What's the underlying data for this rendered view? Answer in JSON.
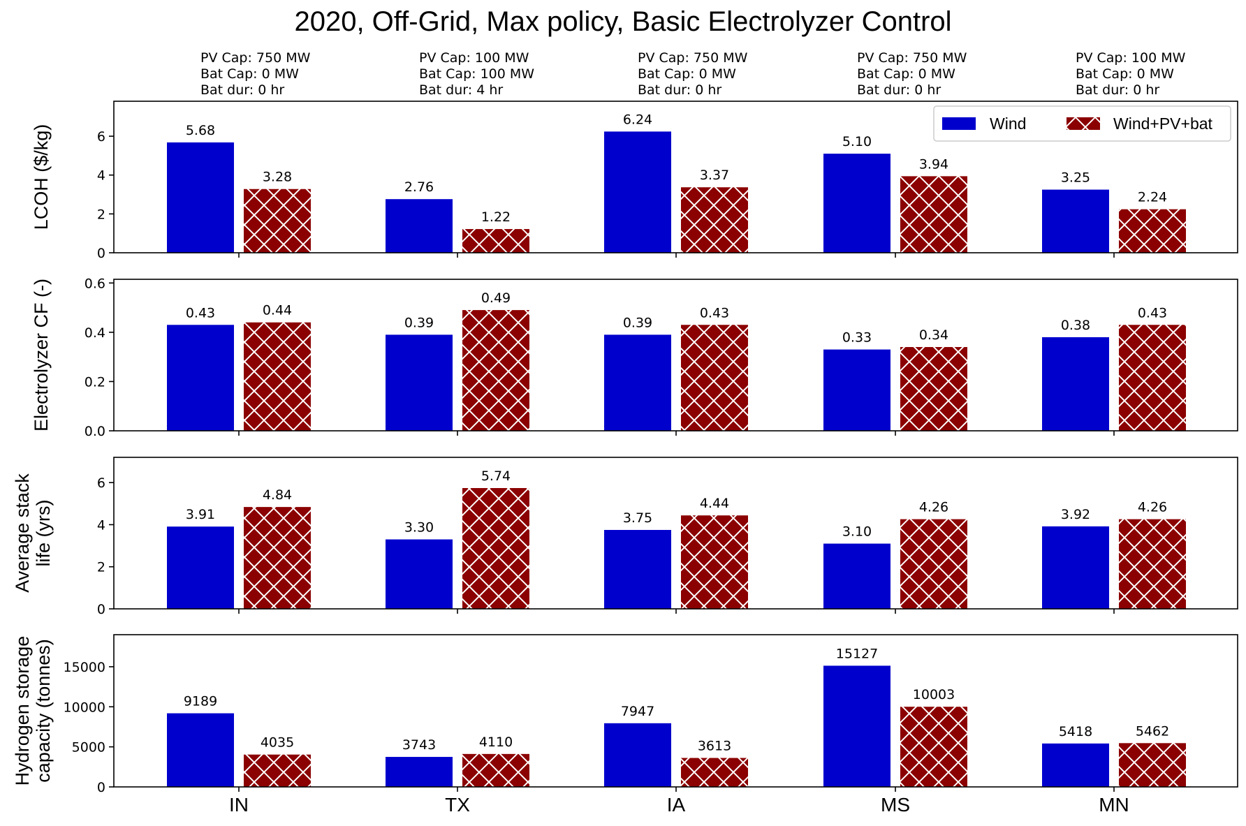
{
  "colors": {
    "wind": "#0000cd",
    "hybrid": "#8b0000",
    "hatch": "#ffffff",
    "axis": "#000000",
    "background": "#ffffff"
  },
  "chart_data": {
    "type": "bar",
    "title": "2020, Off-Grid, Max policy, Basic Electrolyzer Control",
    "categories": [
      "IN",
      "TX",
      "IA",
      "MS",
      "MN"
    ],
    "legend": {
      "placement": "top-right",
      "entries": [
        "Wind",
        "Wind+PV+bat"
      ]
    },
    "annotations": [
      [
        "PV Cap: 750 MW",
        "Bat Cap: 0 MW",
        "Bat dur: 0 hr"
      ],
      [
        "PV Cap: 100 MW",
        "Bat Cap: 100 MW",
        "Bat dur: 4 hr"
      ],
      [
        "PV Cap: 750 MW",
        "Bat Cap: 0 MW",
        "Bat dur: 0 hr"
      ],
      [
        "PV Cap: 750 MW",
        "Bat Cap: 0 MW",
        "Bat dur: 0 hr"
      ],
      [
        "PV Cap: 100 MW",
        "Bat Cap: 0 MW",
        "Bat dur: 0 hr"
      ]
    ],
    "panels": [
      {
        "ylabel": [
          "LCOH ($/kg)"
        ],
        "ylim": [
          0,
          7.8
        ],
        "yticks": [
          0,
          2,
          4,
          6
        ],
        "ytick_labels": [
          "0",
          "2",
          "4",
          "6"
        ],
        "series": [
          {
            "name": "Wind",
            "values": [
              5.68,
              2.76,
              6.24,
              5.1,
              3.25
            ],
            "labels": [
              "5.68",
              "2.76",
              "6.24",
              "5.10",
              "3.25"
            ]
          },
          {
            "name": "Wind+PV+bat",
            "values": [
              3.28,
              1.22,
              3.37,
              3.94,
              2.24
            ],
            "labels": [
              "3.28",
              "1.22",
              "3.37",
              "3.94",
              "2.24"
            ]
          }
        ]
      },
      {
        "ylabel": [
          "Electrolyzer CF (-)"
        ],
        "ylim": [
          0,
          0.615
        ],
        "yticks": [
          0,
          0.2,
          0.4,
          0.6
        ],
        "ytick_labels": [
          "0.0",
          "0.2",
          "0.4",
          "0.6"
        ],
        "series": [
          {
            "name": "Wind",
            "values": [
              0.43,
              0.39,
              0.39,
              0.33,
              0.38
            ],
            "labels": [
              "0.43",
              "0.39",
              "0.39",
              "0.33",
              "0.38"
            ]
          },
          {
            "name": "Wind+PV+bat",
            "values": [
              0.44,
              0.49,
              0.43,
              0.34,
              0.43
            ],
            "labels": [
              "0.44",
              "0.49",
              "0.43",
              "0.34",
              "0.43"
            ]
          }
        ]
      },
      {
        "ylabel": [
          "Average stack",
          "life (yrs)"
        ],
        "ylim": [
          0,
          7.2
        ],
        "yticks": [
          0,
          2,
          4,
          6
        ],
        "ytick_labels": [
          "0",
          "2",
          "4",
          "6"
        ],
        "series": [
          {
            "name": "Wind",
            "values": [
              3.91,
              3.3,
              3.75,
              3.1,
              3.92
            ],
            "labels": [
              "3.91",
              "3.30",
              "3.75",
              "3.10",
              "3.92"
            ]
          },
          {
            "name": "Wind+PV+bat",
            "values": [
              4.84,
              5.74,
              4.44,
              4.26,
              4.26
            ],
            "labels": [
              "4.84",
              "5.74",
              "4.44",
              "4.26",
              "4.26"
            ]
          }
        ]
      },
      {
        "ylabel": [
          "Hydrogen storage",
          "capacity (tonnes)"
        ],
        "ylim": [
          0,
          19000
        ],
        "yticks": [
          0,
          5000,
          10000,
          15000
        ],
        "ytick_labels": [
          "0",
          "5000",
          "10000",
          "15000"
        ],
        "series": [
          {
            "name": "Wind",
            "values": [
              9189,
              3743,
              7947,
              15127,
              5418
            ],
            "labels": [
              "9189",
              "3743",
              "7947",
              "15127",
              "5418"
            ]
          },
          {
            "name": "Wind+PV+bat",
            "values": [
              4035,
              4110,
              3613,
              10003,
              5462
            ],
            "labels": [
              "4035",
              "4110",
              "3613",
              "10003",
              "5462"
            ]
          }
        ]
      }
    ]
  }
}
